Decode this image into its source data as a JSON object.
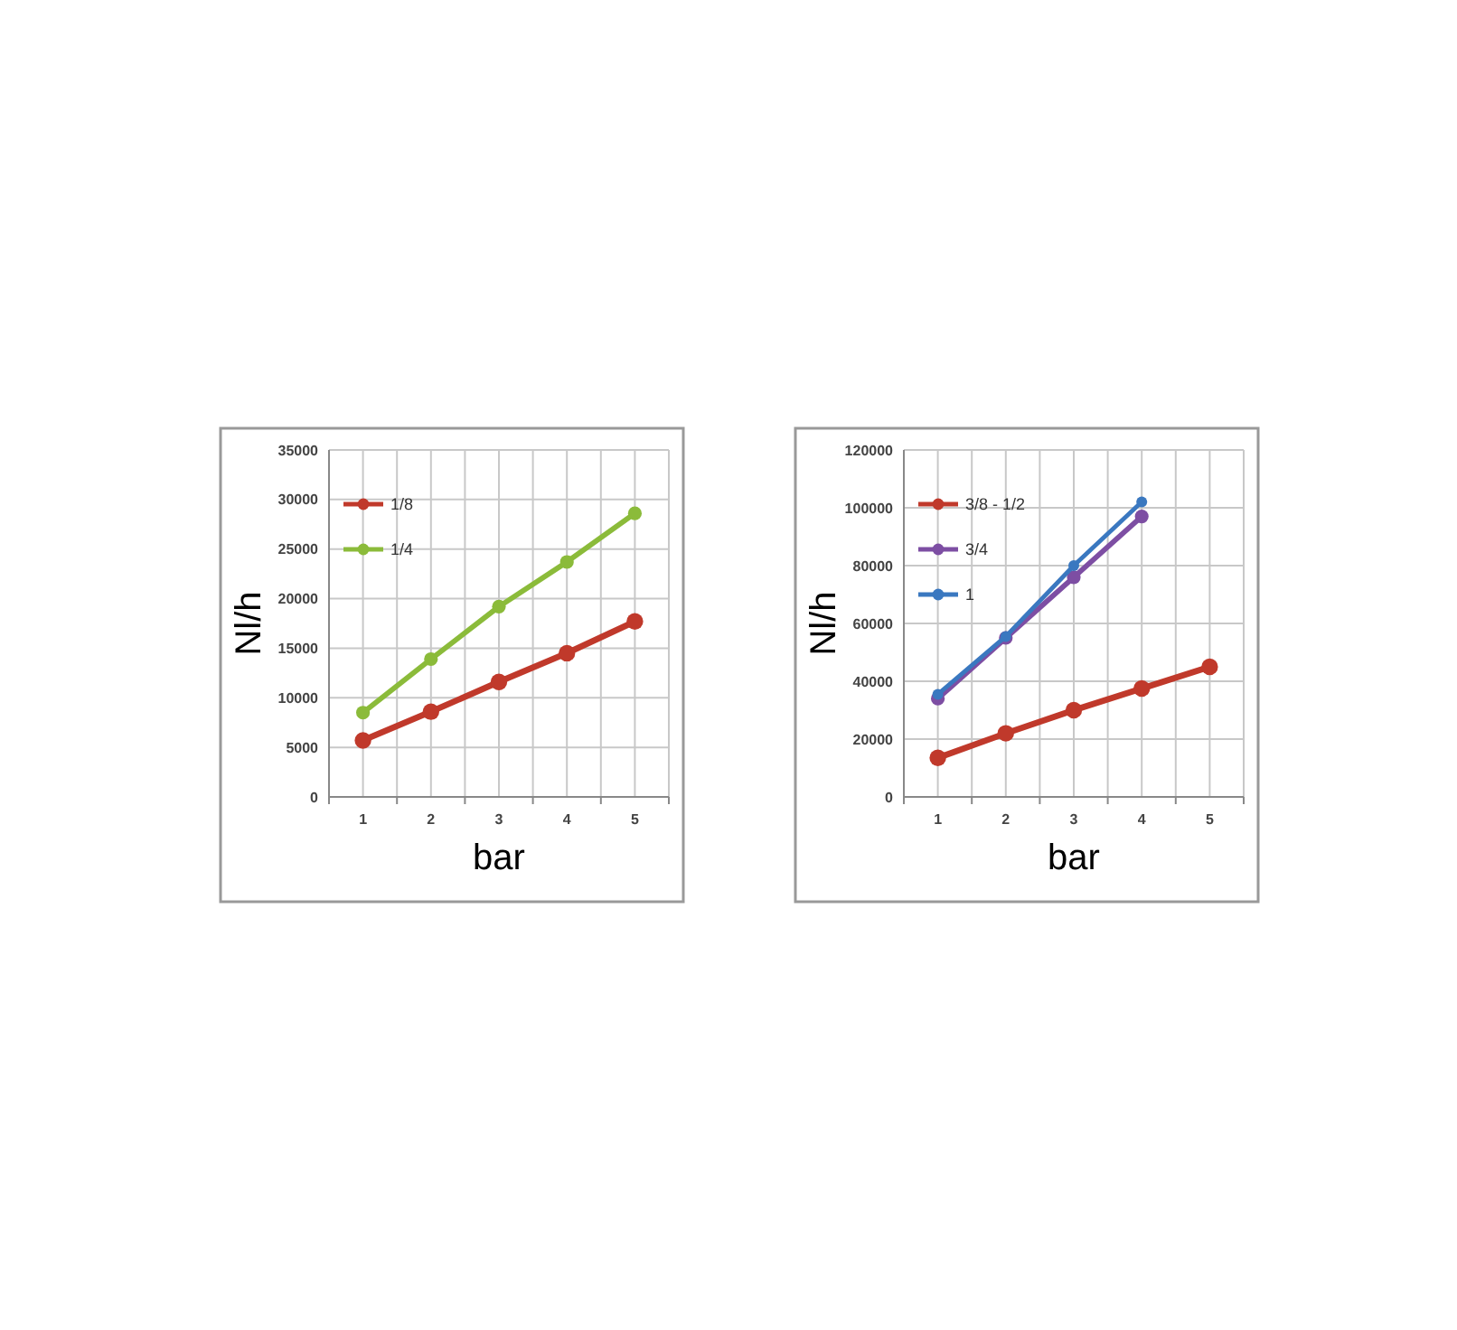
{
  "chart_data": [
    {
      "type": "line",
      "xlabel": "bar",
      "ylabel": "Nl/h",
      "categories": [
        "1",
        "2",
        "3",
        "4",
        "5"
      ],
      "ylim": [
        0,
        35000
      ],
      "yticks": [
        0,
        5000,
        10000,
        15000,
        20000,
        25000,
        30000,
        35000
      ],
      "grid": true,
      "legend": "top left",
      "marker": "circle",
      "series": [
        {
          "name": "1/8",
          "color": "#c0392b",
          "values": [
            5700,
            8600,
            11600,
            14500,
            17700
          ]
        },
        {
          "name": "1/4",
          "color": "#8bbb3a",
          "values": [
            8500,
            13900,
            19200,
            23700,
            28600
          ]
        }
      ]
    },
    {
      "type": "line",
      "xlabel": "bar",
      "ylabel": "Nl/h",
      "categories": [
        "1",
        "2",
        "3",
        "4",
        "5"
      ],
      "ylim": [
        0,
        120000
      ],
      "yticks": [
        0,
        20000,
        40000,
        60000,
        80000,
        100000,
        120000
      ],
      "grid": true,
      "legend": "top left",
      "marker": "circle",
      "series": [
        {
          "name": "3/8 - 1/2",
          "color": "#c0392b",
          "values": [
            13500,
            22000,
            30000,
            37500,
            45000
          ]
        },
        {
          "name": "3/4",
          "color": "#7d4ea3",
          "values": [
            34000,
            55000,
            76000,
            97000,
            null
          ]
        },
        {
          "name": "1",
          "color": "#3a78c0",
          "values": [
            35500,
            55500,
            80000,
            102000,
            null
          ]
        }
      ]
    }
  ]
}
